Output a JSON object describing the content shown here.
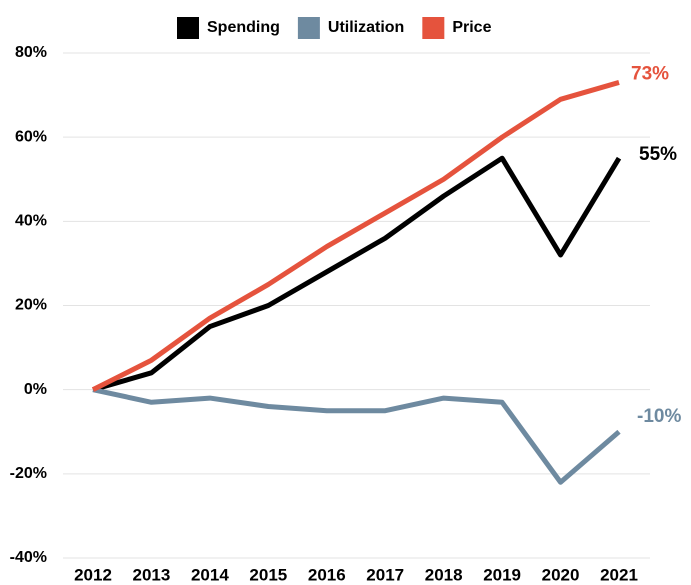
{
  "chart_data": {
    "type": "line",
    "x": [
      2012,
      2013,
      2014,
      2015,
      2016,
      2017,
      2018,
      2019,
      2020,
      2021
    ],
    "series": [
      {
        "name": "Spending",
        "color": "#000000",
        "values": [
          0,
          4,
          15,
          20,
          28,
          36,
          46,
          55,
          32,
          55
        ],
        "value_labels": [
          null,
          null,
          null,
          null,
          null,
          null,
          null,
          null,
          null,
          "55%"
        ]
      },
      {
        "name": "Utilization",
        "color": "#6e8aa0",
        "values": [
          0,
          -3,
          -2,
          -4,
          -5,
          -5,
          -2,
          -3,
          -22,
          -10
        ],
        "value_labels": [
          null,
          null,
          null,
          null,
          null,
          null,
          null,
          null,
          null,
          "-10%"
        ]
      },
      {
        "name": "Price",
        "color": "#e5533d",
        "values": [
          0,
          7,
          17,
          25,
          34,
          42,
          50,
          60,
          69,
          73
        ],
        "value_labels": [
          null,
          null,
          null,
          null,
          null,
          null,
          null,
          null,
          null,
          "73%"
        ]
      }
    ],
    "xlim": [
      2012,
      2021
    ],
    "ylim": [
      -40,
      80
    ],
    "yticks": [
      {
        "value": -40,
        "label": "-40%"
      },
      {
        "value": -20,
        "label": "-20%"
      },
      {
        "value": 0,
        "label": "0%"
      },
      {
        "value": 20,
        "label": "20%"
      },
      {
        "value": 40,
        "label": "40%"
      },
      {
        "value": 60,
        "label": "60%"
      },
      {
        "value": 80,
        "label": "80%"
      }
    ],
    "grid": true,
    "legend": "top"
  }
}
